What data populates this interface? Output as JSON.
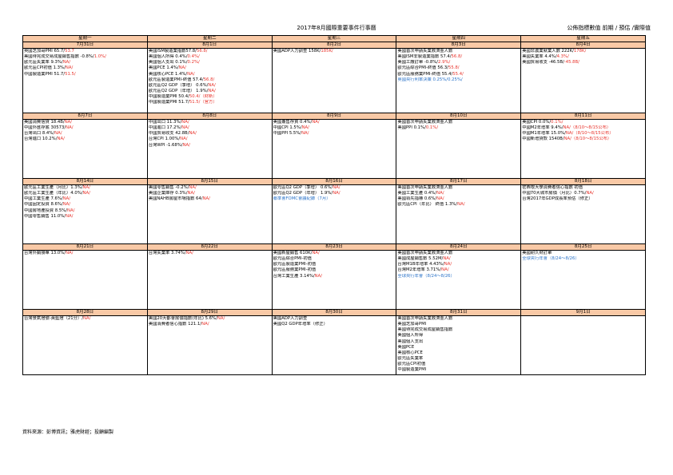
{
  "title": "2017年8月國際重要事件行事曆",
  "legend": "公佈指標數值  前期 / 預估 /實際值",
  "weekdays": [
    "星期一",
    "星期二",
    "星期三",
    "星期四",
    "星期五"
  ],
  "colors": {
    "header_bg": "#f9c9a6",
    "value_red": "#e8332b",
    "value_blue": "#2b73c8"
  },
  "weeks": [
    {
      "dates": [
        "7月31日",
        "8月1日",
        "8月2日",
        "8月3日",
        "8月4日"
      ],
      "cells": [
        [
          {
            "text": "英國芝加哥PMI 65.7/",
            "value": "53.7",
            "style": "na"
          },
          {
            "text": "美國待完成交易成屋銷售指數 -0.8%/",
            "value": "1.0%/",
            "style": "na"
          },
          {
            "text": "歐元區失業率 9.3%/",
            "value": "NA/",
            "style": "na"
          },
          {
            "text": "歐元區CPI初值 1.3%/",
            "value": "NA/",
            "style": "na"
          },
          {
            "text": "中國製造業PMI 51.7/",
            "value": "51.5/",
            "style": "na"
          }
        ],
        [
          {
            "text": "美國ISM製造業指數57.8/",
            "value": "56.8/",
            "style": "na"
          },
          {
            "text": "美國個人所得 0.4%/",
            "value": "0.4%/",
            "style": "na"
          },
          {
            "text": "美國個人支出 0.1%/",
            "value": "0.2%/",
            "style": "na"
          },
          {
            "text": "美國PCE 1.4%/",
            "value": "NA/",
            "style": "na"
          },
          {
            "text": "美國核心PCE 1.4%/",
            "value": "NA/",
            "style": "na"
          },
          {
            "text": "歐元區製造業PMI-終值 57.4/",
            "value": "56.8/",
            "style": "na"
          },
          {
            "text": "歐元區Q2 GDP（季增） 0.6%/",
            "value": "NA/",
            "style": "na"
          },
          {
            "text": "歐元區Q2 GDP（年增） 1.9%/",
            "value": "NA/",
            "style": "na"
          },
          {
            "text": "中國製造業PMI 50.4/",
            "value": "50.4/（財新）",
            "style": "na"
          },
          {
            "text": "中國製造業PMI 51.7/",
            "value": "51.5/（官方）",
            "style": "na"
          }
        ],
        [
          {
            "text": "美國ADP人力調查 158K/",
            "value": "185K/",
            "style": "na"
          }
        ],
        [
          {
            "text": "美國首次申請失業救濟金人數",
            "value": "",
            "style": "na"
          },
          {
            "text": "美國ISM非製造業指數 57.4/",
            "value": "56.8/",
            "style": "na"
          },
          {
            "text": "美國工廠訂單 -0.8%/",
            "value": "2.9%/",
            "style": "na"
          },
          {
            "text": "歐元區綜合PMI-終值 56.3/",
            "value": "55.8/",
            "style": "na"
          },
          {
            "text": "歐元區服務業PMI-終值 55.4/",
            "value": "55.4/",
            "style": "na"
          },
          {
            "text": "英國央行利率決策 0.25%/",
            "value": "0.25%/",
            "style": "blue"
          }
        ],
        [
          {
            "text": "美國非農業就業人數 222K/",
            "value": "178K/",
            "style": "na"
          },
          {
            "text": "美國失業率 4.4%/",
            "value": "4.3%/",
            "style": "na"
          },
          {
            "text": "美國貿易收支 -46.5B/",
            "value": "-45.8B/",
            "style": "na"
          }
        ]
      ]
    },
    {
      "dates": [
        "8月7日",
        "8月8日",
        "8月9日",
        "8月10日",
        "8月11日"
      ],
      "cells": [
        [
          {
            "text": "美國消費信貸 18.4B/",
            "value": "NA/",
            "style": "na"
          },
          {
            "text": "中國外匯存底 30573/",
            "value": "NA/",
            "style": "na"
          },
          {
            "text": "台灣出口 8.4%/",
            "value": "NA/",
            "style": "na"
          },
          {
            "text": "台灣進口 10.2%/",
            "value": "NA/",
            "style": "na"
          }
        ],
        [
          {
            "text": "中國出口 11.3%/",
            "value": "NA/",
            "style": "na"
          },
          {
            "text": "中國進口 17.2%/",
            "value": "NA/",
            "style": "na"
          },
          {
            "text": "中國貿易收支 42.8B/",
            "value": "NA/",
            "style": "na"
          },
          {
            "text": "台灣CPI 1.00%/",
            "value": "NA/",
            "style": "na"
          },
          {
            "text": "台灣WPI -1.68%/",
            "value": "NA/",
            "style": "na"
          }
        ],
        [
          {
            "text": "美國躉售存貨 0.4%/",
            "value": "NA/",
            "style": "na"
          },
          {
            "text": "中國CPI 1.5%/",
            "value": "NA/",
            "style": "na"
          },
          {
            "text": "中國PPI 5.5%/",
            "value": "NA/",
            "style": "na"
          }
        ],
        [
          {
            "text": "美國首次申請失業救濟金人數",
            "value": "",
            "style": "na"
          },
          {
            "text": "美國PPI 0.1%/",
            "value": "0.1%/",
            "style": "na"
          }
        ],
        [
          {
            "text": "美國CPI 0.0%/",
            "value": "0.1%/",
            "style": "na"
          },
          {
            "text": "中國M2年增率 9.4%/",
            "value": "NA/（8/10～8/15公布）",
            "style": "na"
          },
          {
            "text": "中國M1年增率 15.0%/",
            "value": "NA/（8/10～8/15公布）",
            "style": "na"
          },
          {
            "text": "中國新增貸款 1540B/",
            "value": "NA/（8/10～8/15公布）",
            "style": "na"
          }
        ]
      ]
    },
    {
      "dates": [
        "8月14日",
        "8月15日",
        "8月16日",
        "8月17日",
        "8月18日"
      ],
      "cells": [
        [
          {
            "text": "歐元區工業生產（月比）1.3%/",
            "value": "NA/",
            "style": "na"
          },
          {
            "text": "歐元區工業生產（年比）4.0%/",
            "value": "NA/",
            "style": "na"
          },
          {
            "text": "中國工業生產 7.6%/",
            "value": "NA/",
            "style": "na"
          },
          {
            "text": "中國固定投資 8.6%/",
            "value": "NA/",
            "style": "na"
          },
          {
            "text": "中國房地產投資 8.5%/",
            "value": "NA/",
            "style": "na"
          },
          {
            "text": "中國零售銷售 11.0%/",
            "value": "NA/",
            "style": "na"
          }
        ],
        [
          {
            "text": "美國零售銷售 -0.2%/",
            "value": "NA/",
            "style": "na"
          },
          {
            "text": "美國企業庫存 0.3%/",
            "value": "NA/",
            "style": "na"
          },
          {
            "text": "美國NAHB房屋市場指數 64/",
            "value": "NA/",
            "style": "na"
          }
        ],
        [
          {
            "text": "歐元區Q2 GDP（季增） 0.6%/",
            "value": "NA/",
            "style": "na"
          },
          {
            "text": "歐元區Q2 GDP（年增） 1.9%/",
            "value": "NA/",
            "style": "na"
          },
          {
            "text": "聯準會FOMC會議紀錄（7月）",
            "value": "",
            "style": "blue"
          }
        ],
        [
          {
            "text": "美國首次申請失業救濟金人數",
            "value": "",
            "style": "na"
          },
          {
            "text": "美國工業生產 0.4%/",
            "value": "NA/",
            "style": "na"
          },
          {
            "text": "美國領先指標 0.6%/",
            "value": "NA/",
            "style": "na"
          },
          {
            "text": "歐元區CPI（年比） 終值 1.3%/",
            "value": "NA/",
            "style": "na"
          }
        ],
        [
          {
            "text": "密西根大學消費者信心指數 初值",
            "value": "",
            "style": "na"
          },
          {
            "text": "中國70大城市房價（月比）0.7%/",
            "value": "NA/",
            "style": "na"
          },
          {
            "text": "台灣2017年GDP成長率預估（修正）",
            "value": "",
            "style": "na"
          }
        ]
      ]
    },
    {
      "dates": [
        "8月21日",
        "8月22日",
        "8月23日",
        "8月24日",
        "8月25日"
      ],
      "cells": [
        [
          {
            "text": "台灣外銷接單 13.0%/",
            "value": "NA/",
            "style": "na"
          }
        ],
        [
          {
            "text": "台灣失業率 3.74%/",
            "value": "NA/",
            "style": "na"
          }
        ],
        [
          {
            "text": "美國新屋銷售 610K/",
            "value": "NA/",
            "style": "na"
          },
          {
            "text": "歐元區綜合PMI-初值",
            "value": "",
            "style": "na"
          },
          {
            "text": "歐元區製造業PMI-初值",
            "value": "",
            "style": "na"
          },
          {
            "text": "歐元區服務業PMI-初值",
            "value": "",
            "style": "na"
          },
          {
            "text": "台灣工業生產 3.14%/",
            "value": "NA/",
            "style": "na"
          }
        ],
        [
          {
            "text": "美國首次申請失業救濟金人數",
            "value": "",
            "style": "na"
          },
          {
            "text": "美國成屋銷售數 5.52M/",
            "value": "NA/",
            "style": "na"
          },
          {
            "text": "台灣M1B年增率 4.43%/",
            "value": "NA/",
            "style": "na"
          },
          {
            "text": "台灣M2年增率 3.71%/",
            "value": "NA/",
            "style": "na"
          },
          {
            "text": "全球央行年會（8/24～8/26）",
            "value": "",
            "style": "blue"
          }
        ],
        [
          {
            "text": "美國耐久財訂單",
            "value": "",
            "style": "na"
          },
          {
            "text": "全球央行年會（8/24～8/26）",
            "value": "",
            "style": "blue"
          }
        ]
      ]
    },
    {
      "dates": [
        "8月28日",
        "8月29日",
        "8月30日",
        "8月31日",
        "9月1日"
      ],
      "cells": [
        [
          {
            "text": "台灣景氣燈號-黃藍燈（21分）/",
            "value": "NA/",
            "style": "na"
          }
        ],
        [
          {
            "text": "美國20大都會房價指數(年比) 5.6%/",
            "value": "NA/",
            "style": "na"
          },
          {
            "text": "美國消費者信心指數 121.1/",
            "value": "NA/",
            "style": "na"
          }
        ],
        [
          {
            "text": "美國ADP人力調查",
            "value": "",
            "style": "na"
          },
          {
            "text": "美國Q2 GDP年增率（修正）",
            "value": "",
            "style": "na"
          }
        ],
        [
          {
            "text": "美國首次申請失業救濟金人數",
            "value": "",
            "style": "na"
          },
          {
            "text": "美國芝加哥PMI",
            "value": "",
            "style": "na"
          },
          {
            "text": "美國待完成交易成屋銷售指數",
            "value": "",
            "style": "na"
          },
          {
            "text": "美國個人所得",
            "value": "",
            "style": "na"
          },
          {
            "text": "美國個人支出",
            "value": "",
            "style": "na"
          },
          {
            "text": "美國PCE",
            "value": "",
            "style": "na"
          },
          {
            "text": "美國核心PCE",
            "value": "",
            "style": "na"
          },
          {
            "text": "歐元區失業率",
            "value": "",
            "style": "na"
          },
          {
            "text": "歐元區CPI初值",
            "value": "",
            "style": "na"
          },
          {
            "text": "中國製造業PMI",
            "value": "",
            "style": "na"
          }
        ],
        []
      ]
    }
  ],
  "source": "資料來源：彭博資訊；雅虎財經；投顧編製"
}
